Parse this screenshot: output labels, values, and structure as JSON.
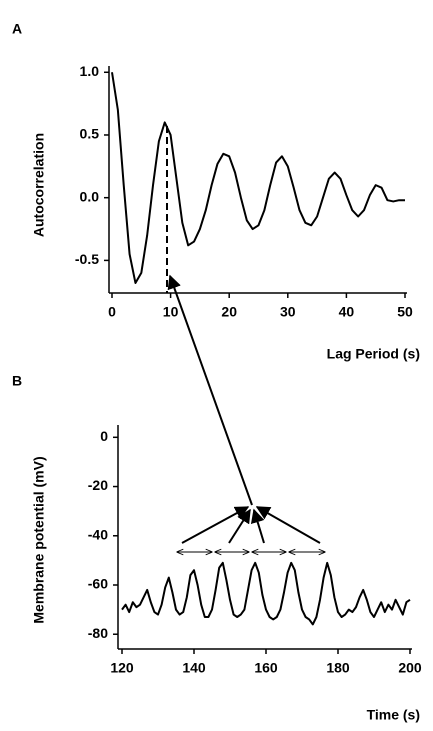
{
  "chart_data": [
    {
      "type": "line",
      "panel_label": "A",
      "xlabel": "Lag Period (s)",
      "ylabel": "Autocorrelation",
      "color": "#000000",
      "x": [
        0,
        1,
        2,
        3,
        4,
        5,
        6,
        7,
        8,
        9,
        10,
        11,
        12,
        13,
        14,
        15,
        16,
        17,
        18,
        19,
        20,
        21,
        22,
        23,
        24,
        25,
        26,
        27,
        28,
        29,
        30,
        31,
        32,
        33,
        34,
        35,
        36,
        37,
        38,
        39,
        40,
        41,
        42,
        43,
        44,
        45,
        46,
        47,
        48,
        49,
        50
      ],
      "values": [
        1.0,
        0.7,
        0.1,
        -0.45,
        -0.68,
        -0.6,
        -0.3,
        0.1,
        0.45,
        0.6,
        0.5,
        0.15,
        -0.2,
        -0.38,
        -0.35,
        -0.25,
        -0.1,
        0.1,
        0.27,
        0.35,
        0.33,
        0.2,
        0.0,
        -0.18,
        -0.25,
        -0.22,
        -0.1,
        0.1,
        0.28,
        0.33,
        0.25,
        0.08,
        -0.1,
        -0.2,
        -0.22,
        -0.15,
        0.0,
        0.15,
        0.2,
        0.15,
        0.02,
        -0.1,
        -0.15,
        -0.1,
        0.02,
        0.1,
        0.08,
        -0.02,
        -0.03,
        -0.02,
        -0.02
      ],
      "xlim": [
        0,
        50
      ],
      "ylim": [
        -0.76,
        1.05
      ],
      "xticks": [
        0,
        10,
        20,
        30,
        40,
        50
      ],
      "yticks": [
        {
          "value": 1,
          "label": "1.0"
        },
        0.5,
        {
          "value": 0,
          "label": "0.0"
        },
        -0.5
      ]
    },
    {
      "type": "line",
      "panel_label": "B",
      "xlabel": "Time (s)",
      "ylabel": "Membrane potential (mV)",
      "color": "#000000",
      "x": [
        120,
        121,
        122,
        123,
        124,
        125,
        126,
        127,
        128,
        129,
        130,
        131,
        132,
        133,
        134,
        135,
        136,
        137,
        138,
        139,
        140,
        141,
        142,
        143,
        144,
        145,
        146,
        147,
        148,
        149,
        150,
        151,
        152,
        153,
        154,
        155,
        156,
        157,
        158,
        159,
        160,
        161,
        162,
        163,
        164,
        165,
        166,
        167,
        168,
        169,
        170,
        171,
        172,
        173,
        174,
        175,
        176,
        177,
        178,
        179,
        180,
        181,
        182,
        183,
        184,
        185,
        186,
        187,
        188,
        189,
        190,
        191,
        192,
        193,
        194,
        195,
        196,
        197,
        198,
        199,
        200
      ],
      "values": [
        -70,
        -68,
        -71,
        -67,
        -69,
        -68,
        -65,
        -62,
        -67,
        -71,
        -72,
        -68,
        -61,
        -57,
        -63,
        -70,
        -72,
        -71,
        -65,
        -56,
        -54,
        -60,
        -68,
        -73,
        -73,
        -70,
        -62,
        -53,
        -51,
        -58,
        -66,
        -72,
        -73,
        -72,
        -70,
        -62,
        -54,
        -51,
        -55,
        -64,
        -70,
        -73,
        -74,
        -73,
        -70,
        -63,
        -55,
        -51,
        -54,
        -63,
        -70,
        -73,
        -74,
        -76,
        -73,
        -66,
        -57,
        -51,
        -56,
        -65,
        -71,
        -73,
        -72,
        -70,
        -71,
        -69,
        -65,
        -62,
        -66,
        -71,
        -73,
        -70,
        -67,
        -71,
        -68,
        -70,
        -66,
        -69,
        -72,
        -67,
        -66
      ],
      "xlim": [
        120,
        200
      ],
      "ylim": [
        -86,
        5
      ],
      "xticks": [
        120,
        140,
        160,
        180,
        200
      ],
      "yticks": [
        0,
        -20,
        -40,
        -60,
        -80
      ]
    }
  ]
}
